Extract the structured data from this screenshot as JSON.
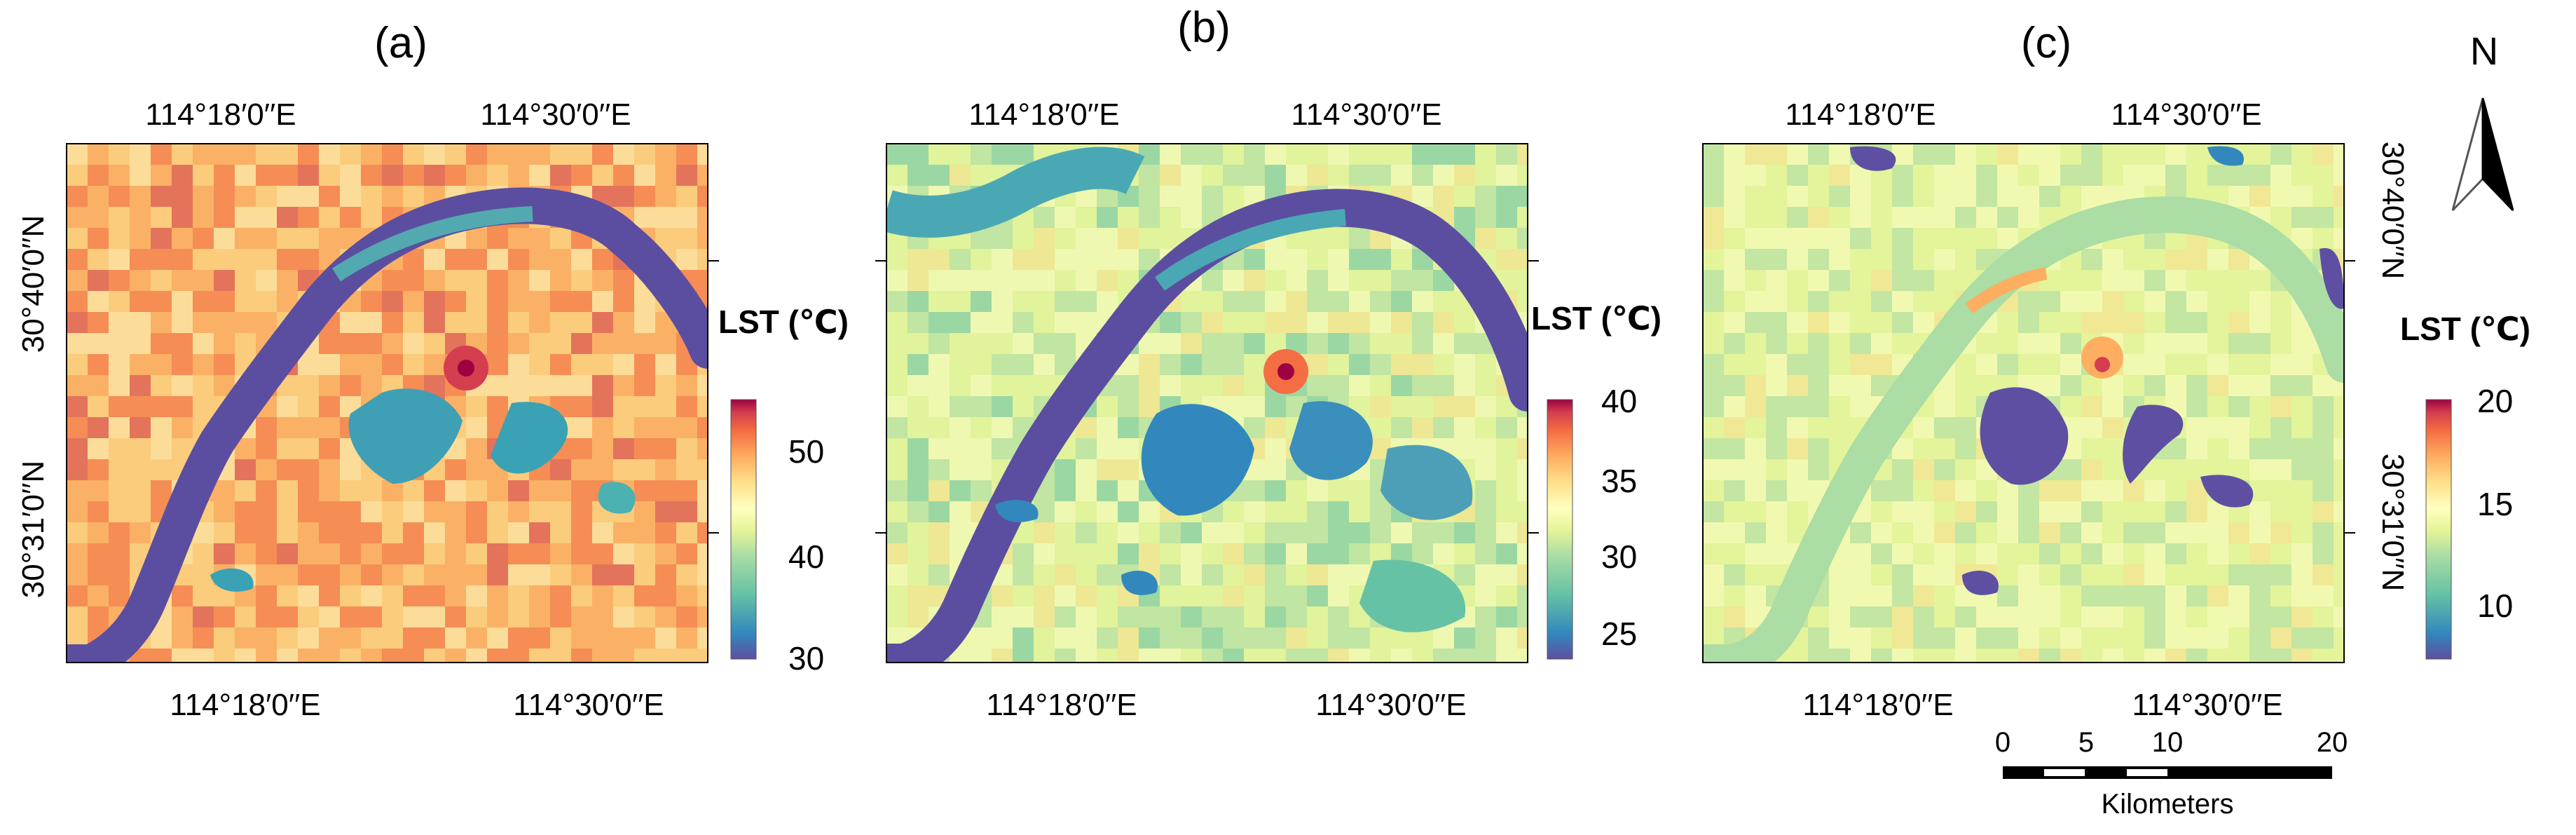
{
  "figure": {
    "panels": [
      {
        "id": "a",
        "label": "(a)",
        "top_coords": [
          "114°18′0′′E",
          "114°30′0′′E"
        ],
        "bottom_coords": [
          "114°18′0′′E",
          "114°30′0′′E"
        ],
        "lat_coords": [
          "30°40′0′′N",
          "30°31′0′′N"
        ],
        "legend": {
          "title": "LST (℃)",
          "ticks": [
            "50",
            "40",
            "30"
          ],
          "min": 30,
          "max": 55
        }
      },
      {
        "id": "b",
        "label": "(b)",
        "top_coords": [
          "114°18′0′′E",
          "114°30′0′′E"
        ],
        "bottom_coords": [
          "114°18′0′′E",
          "114°30′0′′E"
        ],
        "lat_coords": [],
        "legend": {
          "title": "LST (℃)",
          "ticks": [
            "40",
            "35",
            "30",
            "25"
          ],
          "min": 23,
          "max": 40
        }
      },
      {
        "id": "c",
        "label": "(c)",
        "top_coords": [
          "114°18′0′′E",
          "114°30′0′′E"
        ],
        "bottom_coords": [
          "114°18′0′′E",
          "114°30′0′′E"
        ],
        "lat_coords": [
          "30°40′0′′N",
          "30°31′0′′N"
        ],
        "legend": {
          "title": "LST (℃)",
          "ticks": [
            "20",
            "15",
            "10"
          ],
          "min": 7,
          "max": 20
        }
      }
    ],
    "north_arrow": {
      "label": "N"
    },
    "scale_bar": {
      "ticks": [
        "0",
        "5",
        "10",
        "20"
      ],
      "unit": "Kilometers"
    },
    "colormap": [
      "#5e4fa2",
      "#3288bd",
      "#66c2a5",
      "#abdda4",
      "#e6f598",
      "#ffffbf",
      "#fee08b",
      "#fdae61",
      "#f46d43",
      "#d53e4f",
      "#9e0142"
    ]
  }
}
